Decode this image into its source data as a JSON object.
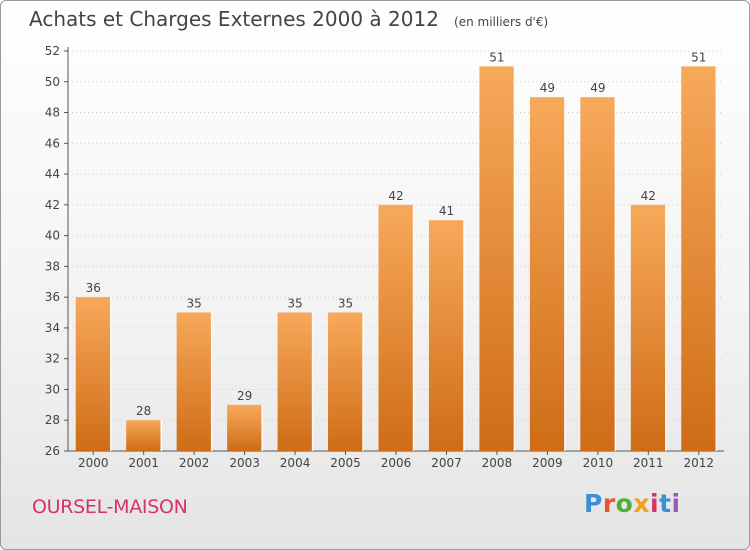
{
  "title": "Achats et Charges Externes 2000 à 2012",
  "unit": "(en milliers d'€)",
  "commune": "OURSEL-MAISON",
  "logo": "Proxiti",
  "logo_colors": [
    "#3a8fd6",
    "#e8542f",
    "#4fae3a",
    "#f0a21a",
    "#d6336c",
    "#3a8fd6",
    "#9b59b6"
  ],
  "colors": {
    "bar_top": "#f7a95a",
    "bar_bottom": "#cf6c17",
    "label": "#444444",
    "axis": "#555555",
    "grid": "#cccccc"
  },
  "chart_data": {
    "type": "bar",
    "categories": [
      "2000",
      "2001",
      "2002",
      "2003",
      "2004",
      "2005",
      "2006",
      "2007",
      "2008",
      "2009",
      "2010",
      "2011",
      "2012"
    ],
    "values": [
      36,
      28,
      35,
      29,
      35,
      35,
      42,
      41,
      51,
      49,
      49,
      42,
      51
    ],
    "ylim": [
      26,
      52
    ],
    "yticks": [
      26,
      28,
      30,
      32,
      34,
      36,
      38,
      40,
      42,
      44,
      46,
      48,
      50,
      52
    ],
    "grid": true,
    "data_labels": true
  }
}
